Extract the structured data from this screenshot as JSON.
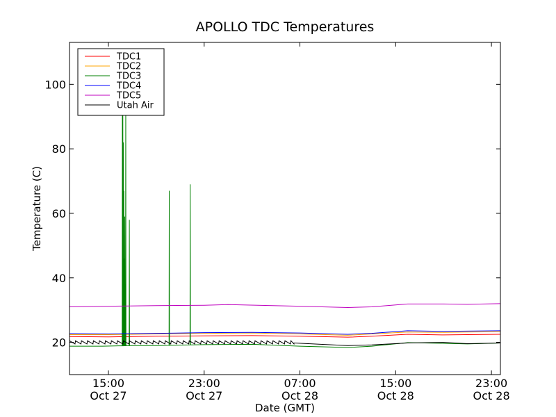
{
  "chart_data": {
    "type": "line",
    "title": "APOLLO TDC Temperatures",
    "xlabel": "Date (GMT)",
    "ylabel": "Temperature (C)",
    "xlim": [
      "2012-10-27 11:45",
      "2012-10-28 23:45"
    ],
    "ylim": [
      10,
      113
    ],
    "grid": false,
    "legend_position": "top-left",
    "x_ticks": [
      {
        "value": "2012-10-27 15:00",
        "line1": "15:00",
        "line2": "Oct 27"
      },
      {
        "value": "2012-10-27 23:00",
        "line1": "23:00",
        "line2": "Oct 27"
      },
      {
        "value": "2012-10-28 07:00",
        "line1": "07:00",
        "line2": "Oct 28"
      },
      {
        "value": "2012-10-28 15:00",
        "line1": "15:00",
        "line2": "Oct 28"
      },
      {
        "value": "2012-10-28 23:00",
        "line1": "23:00",
        "line2": "Oct 28"
      }
    ],
    "y_ticks": [
      20,
      40,
      60,
      80,
      100
    ],
    "series": [
      {
        "name": "TDC1",
        "color": "#ff0000",
        "points": [
          [
            "2012-10-27 11:45",
            21.8
          ],
          [
            "2012-10-27 15:00",
            21.7
          ],
          [
            "2012-10-27 19:00",
            21.9
          ],
          [
            "2012-10-27 23:00",
            22.0
          ],
          [
            "2012-10-28 03:00",
            22.1
          ],
          [
            "2012-10-28 07:00",
            21.9
          ],
          [
            "2012-10-28 11:00",
            21.6
          ],
          [
            "2012-10-28 13:00",
            21.9
          ],
          [
            "2012-10-28 16:00",
            22.5
          ],
          [
            "2012-10-28 19:00",
            22.3
          ],
          [
            "2012-10-28 21:00",
            22.4
          ],
          [
            "2012-10-28 23:45",
            22.5
          ]
        ]
      },
      {
        "name": "TDC2",
        "color": "#ffa500",
        "points": [
          [
            "2012-10-27 11:45",
            22.4
          ],
          [
            "2012-10-27 15:00",
            22.4
          ],
          [
            "2012-10-27 19:00",
            22.6
          ],
          [
            "2012-10-27 23:00",
            22.8
          ],
          [
            "2012-10-28 03:00",
            22.9
          ],
          [
            "2012-10-28 07:00",
            22.6
          ],
          [
            "2012-10-28 11:00",
            22.2
          ],
          [
            "2012-10-28 13:00",
            22.6
          ],
          [
            "2012-10-28 16:00",
            23.2
          ],
          [
            "2012-10-28 19:00",
            23.1
          ],
          [
            "2012-10-28 21:00",
            23.2
          ],
          [
            "2012-10-28 23:45",
            23.3
          ]
        ]
      },
      {
        "name": "TDC3",
        "color": "#008000",
        "points": [
          [
            "2012-10-27 11:45",
            18.8
          ],
          [
            "2012-10-27 14:30",
            18.8
          ],
          [
            "2012-10-27 17:00",
            19.0
          ],
          [
            "2012-10-27 19:00",
            19.0
          ],
          [
            "2012-10-27 23:00",
            19.3
          ],
          [
            "2012-10-28 03:00",
            19.4
          ],
          [
            "2012-10-28 07:00",
            18.8
          ],
          [
            "2012-10-28 11:00",
            18.4
          ],
          [
            "2012-10-28 13:00",
            18.8
          ],
          [
            "2012-10-28 16:00",
            19.9
          ],
          [
            "2012-10-28 19:00",
            19.7
          ],
          [
            "2012-10-28 21:00",
            19.5
          ],
          [
            "2012-10-28 23:45",
            19.8
          ]
        ],
        "spikes": [
          {
            "t": "2012-10-27 16:10",
            "peaks": [
              95,
              92,
              82,
              67,
              46,
              59,
              38,
              95
            ]
          },
          {
            "t": "2012-10-27 16:45",
            "peaks": [
              58
            ]
          },
          {
            "t": "2012-10-27 20:05",
            "peaks": [
              67
            ]
          },
          {
            "t": "2012-10-27 21:50",
            "peaks": [
              69
            ]
          }
        ]
      },
      {
        "name": "TDC4",
        "color": "#0000ff",
        "points": [
          [
            "2012-10-27 11:45",
            22.7
          ],
          [
            "2012-10-27 15:00",
            22.6
          ],
          [
            "2012-10-27 19:00",
            22.8
          ],
          [
            "2012-10-27 23:00",
            23.0
          ],
          [
            "2012-10-28 03:00",
            23.1
          ],
          [
            "2012-10-28 07:00",
            22.9
          ],
          [
            "2012-10-28 11:00",
            22.5
          ],
          [
            "2012-10-28 13:00",
            22.8
          ],
          [
            "2012-10-28 16:00",
            23.6
          ],
          [
            "2012-10-28 19:00",
            23.4
          ],
          [
            "2012-10-28 21:00",
            23.5
          ],
          [
            "2012-10-28 23:45",
            23.6
          ]
        ]
      },
      {
        "name": "TDC5",
        "color": "#bf00bf",
        "points": [
          [
            "2012-10-27 11:45",
            31.0
          ],
          [
            "2012-10-27 15:00",
            31.2
          ],
          [
            "2012-10-27 19:00",
            31.4
          ],
          [
            "2012-10-27 23:00",
            31.5
          ],
          [
            "2012-10-28 01:00",
            31.7
          ],
          [
            "2012-10-28 07:00",
            31.2
          ],
          [
            "2012-10-28 11:00",
            30.8
          ],
          [
            "2012-10-28 13:00",
            31.0
          ],
          [
            "2012-10-28 16:00",
            31.9
          ],
          [
            "2012-10-28 19:00",
            31.9
          ],
          [
            "2012-10-28 21:00",
            31.8
          ],
          [
            "2012-10-28 23:45",
            32.0
          ]
        ]
      },
      {
        "name": "Utah Air",
        "color": "#000000",
        "sawtooth": {
          "t_start": "2012-10-27 11:45",
          "t_end": "2012-10-28 06:30",
          "period_minutes": 30,
          "low": 19.5,
          "high": 20.5
        },
        "points": [
          [
            "2012-10-28 06:30",
            19.8
          ],
          [
            "2012-10-28 11:00",
            19.0
          ],
          [
            "2012-10-28 13:00",
            19.2
          ],
          [
            "2012-10-28 16:00",
            19.8
          ],
          [
            "2012-10-28 19:00",
            20.0
          ],
          [
            "2012-10-28 21:00",
            19.6
          ],
          [
            "2012-10-28 23:45",
            19.8
          ]
        ]
      }
    ]
  }
}
